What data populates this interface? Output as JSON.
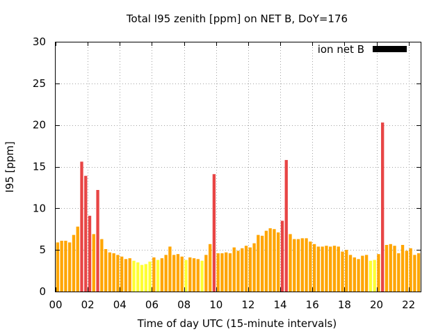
{
  "chart_data": {
    "type": "bar",
    "title": "Total I95 zenith [ppm] on NET B, DoY=176",
    "xlabel": "Time of day UTC (15-minute intervals)",
    "ylabel": "I95 [ppm]",
    "xlim": [
      0,
      22.75
    ],
    "ylim": [
      0,
      30
    ],
    "x_ticks": [
      "00",
      "02",
      "04",
      "06",
      "08",
      "10",
      "12",
      "14",
      "16",
      "18",
      "20",
      "22"
    ],
    "y_ticks": [
      "0",
      "5",
      "10",
      "15",
      "20",
      "25",
      "30"
    ],
    "grid": true,
    "legend": {
      "position": "top-right",
      "entries": [
        {
          "name": "ion net B",
          "color": "#000000"
        }
      ]
    },
    "colors": {
      "low": "#ffff33",
      "medium": "#ffa500",
      "high": "#e84545",
      "legend": "#000000"
    },
    "series": [
      {
        "name": "ion net B",
        "points": [
          {
            "x": 0.0,
            "y": 5.9,
            "level": "medium"
          },
          {
            "x": 0.25,
            "y": 6.1,
            "level": "medium"
          },
          {
            "x": 0.5,
            "y": 6.1,
            "level": "medium"
          },
          {
            "x": 0.75,
            "y": 5.9,
            "level": "medium"
          },
          {
            "x": 1.0,
            "y": 6.8,
            "level": "medium"
          },
          {
            "x": 1.25,
            "y": 7.8,
            "level": "medium"
          },
          {
            "x": 1.5,
            "y": 15.6,
            "level": "high"
          },
          {
            "x": 1.75,
            "y": 13.9,
            "level": "high"
          },
          {
            "x": 2.0,
            "y": 9.1,
            "level": "high"
          },
          {
            "x": 2.25,
            "y": 6.9,
            "level": "medium"
          },
          {
            "x": 2.5,
            "y": 12.2,
            "level": "high"
          },
          {
            "x": 2.75,
            "y": 6.3,
            "level": "medium"
          },
          {
            "x": 3.0,
            "y": 5.1,
            "level": "medium"
          },
          {
            "x": 3.25,
            "y": 4.7,
            "level": "medium"
          },
          {
            "x": 3.5,
            "y": 4.6,
            "level": "medium"
          },
          {
            "x": 3.75,
            "y": 4.4,
            "level": "medium"
          },
          {
            "x": 4.0,
            "y": 4.2,
            "level": "medium"
          },
          {
            "x": 4.25,
            "y": 3.9,
            "level": "medium"
          },
          {
            "x": 4.5,
            "y": 4.0,
            "level": "medium"
          },
          {
            "x": 4.75,
            "y": 3.7,
            "level": "low"
          },
          {
            "x": 5.0,
            "y": 3.5,
            "level": "low"
          },
          {
            "x": 5.25,
            "y": 3.2,
            "level": "low"
          },
          {
            "x": 5.5,
            "y": 3.3,
            "level": "low"
          },
          {
            "x": 5.75,
            "y": 3.6,
            "level": "low"
          },
          {
            "x": 6.0,
            "y": 4.1,
            "level": "medium"
          },
          {
            "x": 6.25,
            "y": 3.8,
            "level": "low"
          },
          {
            "x": 6.5,
            "y": 4.0,
            "level": "medium"
          },
          {
            "x": 6.75,
            "y": 4.4,
            "level": "medium"
          },
          {
            "x": 7.0,
            "y": 5.4,
            "level": "medium"
          },
          {
            "x": 7.25,
            "y": 4.4,
            "level": "medium"
          },
          {
            "x": 7.5,
            "y": 4.5,
            "level": "medium"
          },
          {
            "x": 7.75,
            "y": 4.2,
            "level": "medium"
          },
          {
            "x": 8.0,
            "y": 3.8,
            "level": "low"
          },
          {
            "x": 8.25,
            "y": 4.1,
            "level": "medium"
          },
          {
            "x": 8.5,
            "y": 4.0,
            "level": "medium"
          },
          {
            "x": 8.75,
            "y": 3.9,
            "level": "medium"
          },
          {
            "x": 9.0,
            "y": 3.7,
            "level": "low"
          },
          {
            "x": 9.25,
            "y": 4.4,
            "level": "medium"
          },
          {
            "x": 9.5,
            "y": 5.7,
            "level": "medium"
          },
          {
            "x": 9.75,
            "y": 14.1,
            "level": "high"
          },
          {
            "x": 10.0,
            "y": 4.6,
            "level": "medium"
          },
          {
            "x": 10.25,
            "y": 4.6,
            "level": "medium"
          },
          {
            "x": 10.5,
            "y": 4.7,
            "level": "medium"
          },
          {
            "x": 10.75,
            "y": 4.6,
            "level": "medium"
          },
          {
            "x": 11.0,
            "y": 5.3,
            "level": "medium"
          },
          {
            "x": 11.25,
            "y": 4.9,
            "level": "medium"
          },
          {
            "x": 11.5,
            "y": 5.2,
            "level": "medium"
          },
          {
            "x": 11.75,
            "y": 5.5,
            "level": "medium"
          },
          {
            "x": 12.0,
            "y": 5.3,
            "level": "medium"
          },
          {
            "x": 12.25,
            "y": 5.8,
            "level": "medium"
          },
          {
            "x": 12.5,
            "y": 6.8,
            "level": "medium"
          },
          {
            "x": 12.75,
            "y": 6.7,
            "level": "medium"
          },
          {
            "x": 13.0,
            "y": 7.3,
            "level": "medium"
          },
          {
            "x": 13.25,
            "y": 7.6,
            "level": "medium"
          },
          {
            "x": 13.5,
            "y": 7.5,
            "level": "medium"
          },
          {
            "x": 13.75,
            "y": 7.1,
            "level": "medium"
          },
          {
            "x": 14.0,
            "y": 8.5,
            "level": "high"
          },
          {
            "x": 14.25,
            "y": 15.8,
            "level": "high"
          },
          {
            "x": 14.5,
            "y": 6.9,
            "level": "medium"
          },
          {
            "x": 14.75,
            "y": 6.3,
            "level": "medium"
          },
          {
            "x": 15.0,
            "y": 6.3,
            "level": "medium"
          },
          {
            "x": 15.25,
            "y": 6.4,
            "level": "medium"
          },
          {
            "x": 15.5,
            "y": 6.4,
            "level": "medium"
          },
          {
            "x": 15.75,
            "y": 6.0,
            "level": "medium"
          },
          {
            "x": 16.0,
            "y": 5.7,
            "level": "medium"
          },
          {
            "x": 16.25,
            "y": 5.4,
            "level": "medium"
          },
          {
            "x": 16.5,
            "y": 5.4,
            "level": "medium"
          },
          {
            "x": 16.75,
            "y": 5.5,
            "level": "medium"
          },
          {
            "x": 17.0,
            "y": 5.4,
            "level": "medium"
          },
          {
            "x": 17.25,
            "y": 5.5,
            "level": "medium"
          },
          {
            "x": 17.5,
            "y": 5.4,
            "level": "medium"
          },
          {
            "x": 17.75,
            "y": 4.8,
            "level": "medium"
          },
          {
            "x": 18.0,
            "y": 5.0,
            "level": "medium"
          },
          {
            "x": 18.25,
            "y": 4.4,
            "level": "medium"
          },
          {
            "x": 18.5,
            "y": 4.1,
            "level": "medium"
          },
          {
            "x": 18.75,
            "y": 3.9,
            "level": "medium"
          },
          {
            "x": 19.0,
            "y": 4.3,
            "level": "medium"
          },
          {
            "x": 19.25,
            "y": 4.4,
            "level": "medium"
          },
          {
            "x": 19.5,
            "y": 3.7,
            "level": "low"
          },
          {
            "x": 19.75,
            "y": 3.8,
            "level": "low"
          },
          {
            "x": 20.0,
            "y": 4.5,
            "level": "medium"
          },
          {
            "x": 20.25,
            "y": 20.3,
            "level": "high"
          },
          {
            "x": 20.5,
            "y": 5.6,
            "level": "medium"
          },
          {
            "x": 20.75,
            "y": 5.7,
            "level": "medium"
          },
          {
            "x": 21.0,
            "y": 5.5,
            "level": "medium"
          },
          {
            "x": 21.25,
            "y": 4.6,
            "level": "medium"
          },
          {
            "x": 21.5,
            "y": 5.6,
            "level": "medium"
          },
          {
            "x": 21.75,
            "y": 4.9,
            "level": "medium"
          },
          {
            "x": 22.0,
            "y": 5.2,
            "level": "medium"
          },
          {
            "x": 22.25,
            "y": 4.4,
            "level": "medium"
          },
          {
            "x": 22.5,
            "y": 4.6,
            "level": "medium"
          }
        ]
      }
    ]
  }
}
